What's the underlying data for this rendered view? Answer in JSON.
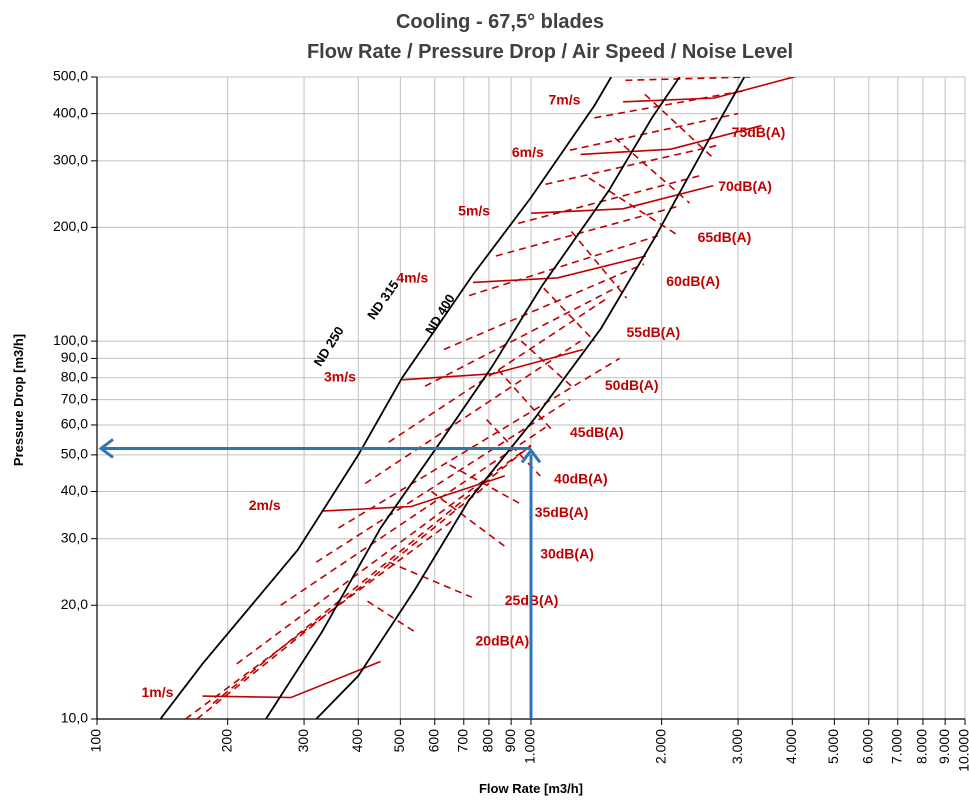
{
  "chart_data": {
    "type": "line",
    "title": "Cooling - 67,5° blades",
    "subtitle": "Flow Rate / Pressure Drop / Air Speed / Noise Level",
    "xlabel": "Flow Rate [m3/h]",
    "ylabel": "Pressure Drop [m3/h]",
    "x_scale": "log",
    "y_scale": "log",
    "xlim": [
      100,
      10000
    ],
    "ylim": [
      10,
      500
    ],
    "grid": true,
    "x_ticks": [
      100,
      200,
      300,
      400,
      500,
      600,
      700,
      800,
      900,
      1000,
      2000,
      3000,
      4000,
      5000,
      6000,
      7000,
      8000,
      9000,
      10000
    ],
    "x_tick_labels": [
      "100",
      "200",
      "300",
      "400",
      "500",
      "600",
      "700",
      "800",
      "900",
      "1.000",
      "2.000",
      "3.000",
      "4.000",
      "5.000",
      "6.000",
      "7.000",
      "8.000",
      "9.000",
      "10.000"
    ],
    "y_ticks": [
      10,
      20,
      30,
      40,
      50,
      60,
      70,
      80,
      90,
      100,
      200,
      300,
      400,
      500
    ],
    "y_tick_labels": [
      "10,0",
      "20,0",
      "30,0",
      "40,0",
      "50,0",
      "60,0",
      "70,0",
      "80,0",
      "90,0",
      "100,0",
      "200,0",
      "300,0",
      "400,0",
      "500,0"
    ],
    "nd_curves": [
      {
        "name": "ND 250",
        "points": [
          [
            140,
            10
          ],
          [
            175,
            14
          ],
          [
            290,
            28
          ],
          [
            400,
            50
          ],
          [
            505,
            80
          ],
          [
            735,
            150
          ],
          [
            1000,
            240
          ],
          [
            1400,
            420
          ],
          [
            1530,
            500
          ]
        ]
      },
      {
        "name": "ND 315",
        "points": [
          [
            245,
            10
          ],
          [
            330,
            17
          ],
          [
            450,
            32
          ],
          [
            625,
            55
          ],
          [
            810,
            85
          ],
          [
            1060,
            140
          ],
          [
            1510,
            250
          ],
          [
            1900,
            390
          ],
          [
            2200,
            500
          ]
        ]
      },
      {
        "name": "ND 400",
        "points": [
          [
            320,
            10
          ],
          [
            400,
            13
          ],
          [
            540,
            22
          ],
          [
            720,
            38
          ],
          [
            1015,
            62
          ],
          [
            1450,
            108
          ],
          [
            1940,
            190
          ],
          [
            2600,
            350
          ],
          [
            3100,
            500
          ]
        ]
      }
    ],
    "speed_lines": [
      {
        "label": "1m/s",
        "points": [
          [
            175,
            11.5
          ],
          [
            280,
            11.4
          ],
          [
            450,
            14.2
          ]
        ]
      },
      {
        "label": "2m/s",
        "points": [
          [
            330,
            35.5
          ],
          [
            530,
            36.5
          ],
          [
            870,
            44
          ]
        ]
      },
      {
        "label": "3m/s",
        "points": [
          [
            505,
            79
          ],
          [
            820,
            82
          ],
          [
            1320,
            95
          ]
        ]
      },
      {
        "label": "4m/s",
        "points": [
          [
            735,
            143
          ],
          [
            1150,
            147
          ],
          [
            1840,
            168
          ]
        ]
      },
      {
        "label": "5m/s",
        "points": [
          [
            1000,
            218
          ],
          [
            1630,
            224
          ],
          [
            2630,
            258
          ]
        ]
      },
      {
        "label": "6m/s",
        "points": [
          [
            1300,
            312
          ],
          [
            2100,
            322
          ],
          [
            3400,
            372
          ]
        ]
      },
      {
        "label": "7m/s",
        "points": [
          [
            1630,
            430
          ],
          [
            2650,
            440
          ],
          [
            4300,
            510
          ]
        ]
      }
    ],
    "speed_dashes": [
      {
        "points": [
          [
            160,
            10
          ],
          [
            660,
            33.5
          ]
        ]
      },
      {
        "points": [
          [
            170,
            10
          ],
          [
            800,
            42
          ]
        ]
      },
      {
        "points": [
          [
            185,
            11
          ],
          [
            1000,
            53
          ]
        ]
      },
      {
        "points": [
          [
            210,
            14
          ],
          [
            1000,
            53
          ]
        ]
      },
      {
        "points": [
          [
            265,
            20
          ],
          [
            1100,
            60
          ]
        ]
      },
      {
        "points": [
          [
            320,
            26
          ],
          [
            1230,
            70
          ]
        ]
      },
      {
        "points": [
          [
            360,
            32
          ],
          [
            1600,
            90
          ]
        ]
      },
      {
        "points": [
          [
            415,
            42
          ],
          [
            1300,
            100
          ]
        ]
      },
      {
        "points": [
          [
            470,
            54
          ],
          [
            1500,
            130
          ]
        ]
      },
      {
        "points": [
          [
            570,
            76
          ],
          [
            1600,
            140
          ]
        ]
      },
      {
        "points": [
          [
            630,
            95
          ],
          [
            1820,
            160
          ]
        ]
      },
      {
        "points": [
          [
            720,
            132
          ],
          [
            1960,
            190
          ]
        ]
      },
      {
        "points": [
          [
            830,
            168
          ],
          [
            2200,
            228
          ]
        ]
      },
      {
        "points": [
          [
            935,
            205
          ],
          [
            2480,
            275
          ]
        ]
      },
      {
        "points": [
          [
            1080,
            260
          ],
          [
            2700,
            330
          ]
        ]
      },
      {
        "points": [
          [
            1230,
            320
          ],
          [
            3000,
            400
          ]
        ]
      },
      {
        "points": [
          [
            1400,
            390
          ],
          [
            3100,
            460
          ]
        ]
      },
      {
        "points": [
          [
            1650,
            490
          ],
          [
            3200,
            500
          ]
        ]
      }
    ],
    "noise_dashes": [
      {
        "label": "20dB(A)",
        "points": [
          [
            420,
            20.5
          ],
          [
            540,
            17
          ]
        ]
      },
      {
        "label": "25dB(A)",
        "points": [
          [
            470,
            26
          ],
          [
            730,
            21
          ]
        ]
      },
      {
        "label": "30dB(A)",
        "points": [
          [
            590,
            40
          ],
          [
            875,
            28.5
          ]
        ]
      },
      {
        "label": "35dB(A)",
        "points": [
          [
            650,
            47
          ],
          [
            950,
            37
          ]
        ]
      },
      {
        "label": "40dB(A)",
        "points": [
          [
            790,
            62
          ],
          [
            1050,
            44
          ]
        ]
      },
      {
        "label": "45dB(A)",
        "points": [
          [
            840,
            84
          ],
          [
            1120,
            58
          ]
        ]
      },
      {
        "label": "50dB(A)",
        "points": [
          [
            950,
            100
          ],
          [
            1240,
            76
          ]
        ]
      },
      {
        "label": "55dB(A)",
        "points": [
          [
            1070,
            138
          ],
          [
            1400,
            100
          ]
        ]
      },
      {
        "label": "60dB(A)",
        "points": [
          [
            1240,
            195
          ],
          [
            1660,
            130
          ]
        ]
      },
      {
        "label": "65dB(A)",
        "points": [
          [
            1360,
            270
          ],
          [
            2190,
            190
          ]
        ]
      },
      {
        "label": "70dB(A)",
        "points": [
          [
            1560,
            345
          ],
          [
            2320,
            232
          ]
        ]
      },
      {
        "label": "75dB(A)",
        "points": [
          [
            1830,
            450
          ],
          [
            2630,
            305
          ]
        ]
      }
    ],
    "speed_labels": [
      {
        "text": "1m/s",
        "x": 150,
        "y": 11.7
      },
      {
        "text": "2m/s",
        "x": 265,
        "y": 36.5
      },
      {
        "text": "3m/s",
        "x": 395,
        "y": 80
      },
      {
        "text": "4m/s",
        "x": 580,
        "y": 146
      },
      {
        "text": "5m/s",
        "x": 805,
        "y": 220
      },
      {
        "text": "6m/s",
        "x": 1070,
        "y": 314
      },
      {
        "text": "7m/s",
        "x": 1300,
        "y": 432
      }
    ],
    "noise_labels": [
      {
        "text": "20dB(A)",
        "x": 745,
        "y": 16
      },
      {
        "text": "25dB(A)",
        "x": 870,
        "y": 20.5
      },
      {
        "text": "30dB(A)",
        "x": 1050,
        "y": 27.2
      },
      {
        "text": "35dB(A)",
        "x": 1020,
        "y": 35
      },
      {
        "text": "40dB(A)",
        "x": 1130,
        "y": 43
      },
      {
        "text": "45dB(A)",
        "x": 1230,
        "y": 57
      },
      {
        "text": "50dB(A)",
        "x": 1480,
        "y": 76
      },
      {
        "text": "55dB(A)",
        "x": 1660,
        "y": 105
      },
      {
        "text": "60dB(A)",
        "x": 2050,
        "y": 143
      },
      {
        "text": "65dB(A)",
        "x": 2420,
        "y": 187
      },
      {
        "text": "70dB(A)",
        "x": 2700,
        "y": 255
      },
      {
        "text": "75dB(A)",
        "x": 2900,
        "y": 355
      }
    ],
    "example_point": {
      "x": 1000,
      "y": 52,
      "color": "#2e75b6"
    },
    "colors": {
      "nd_curve": "#000000",
      "speed": "#c00000",
      "noise": "#c00000",
      "grid": "#c0c0c0",
      "arrow": "#2e75b6"
    }
  }
}
